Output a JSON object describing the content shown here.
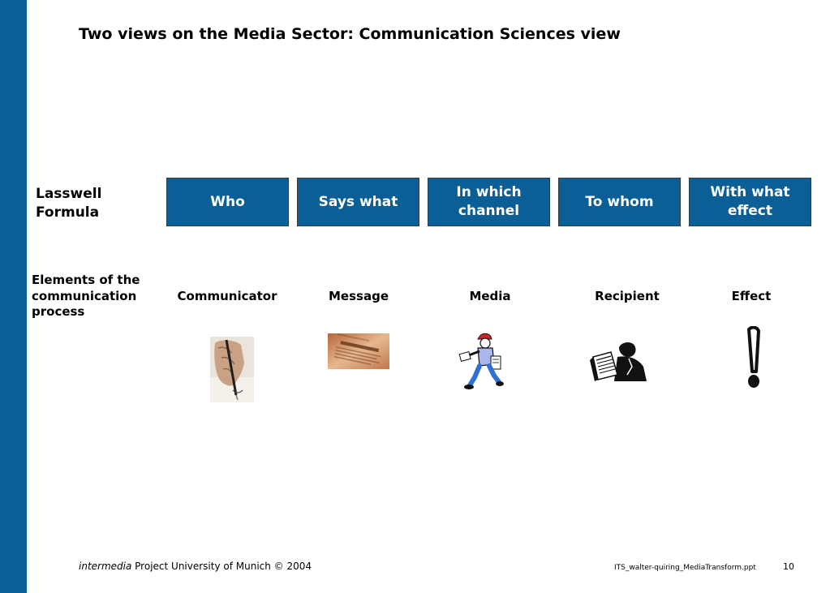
{
  "brand": "intermedia",
  "title": "Two views on the Media Sector: Communication Sciences view",
  "lasswell": {
    "label": "Lasswell Formula",
    "boxes": [
      "Who",
      "Says what",
      "In which channel",
      "To whom",
      "With what effect"
    ]
  },
  "elements": {
    "label": "Elements of the communication process",
    "items": [
      {
        "name": "Communicator",
        "icon": "writing-hand-icon"
      },
      {
        "name": "Message",
        "icon": "newspaper-clipping-icon",
        "image_text": "Market Closes"
      },
      {
        "name": "Media",
        "icon": "paperboy-icon"
      },
      {
        "name": "Recipient",
        "icon": "reader-with-newspaper-icon"
      },
      {
        "name": "Effect",
        "icon": "exclamation-mark-icon"
      }
    ]
  },
  "footer": {
    "brand_italic": "intermedia",
    "text": " Project University of Munich © 2004",
    "filename": "ITS_walter-quiring_MediaTransform.ppt",
    "page_number": "10"
  },
  "colors": {
    "accent": "#0a5f97",
    "box_text": "#ffffff",
    "background": "#ffffff"
  }
}
